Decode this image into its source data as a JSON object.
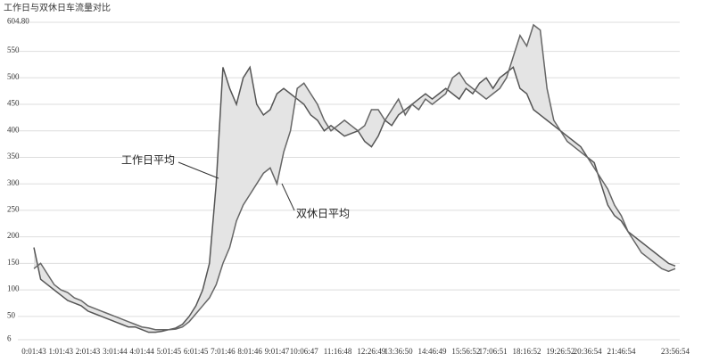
{
  "chart_data": {
    "type": "line",
    "title": "工作日与双休日车流量对比",
    "categories": [
      "0:01:43",
      null,
      null,
      null,
      "1:01:43",
      null,
      null,
      null,
      "2:01:43",
      null,
      null,
      null,
      "3:01:44",
      null,
      null,
      null,
      "4:01:44",
      null,
      null,
      null,
      "5:01:45",
      null,
      null,
      null,
      "6:01:45",
      null,
      null,
      null,
      "7:01:46",
      null,
      null,
      null,
      "8:01:46",
      null,
      null,
      null,
      "9:01:47",
      null,
      null,
      null,
      "10:06:47",
      null,
      null,
      null,
      null,
      "11:16:48",
      null,
      null,
      null,
      null,
      "12:26:49",
      null,
      null,
      null,
      "13:36:50",
      null,
      null,
      null,
      null,
      "14:46:49",
      null,
      null,
      null,
      null,
      "15:56:52",
      null,
      null,
      null,
      "17:06:51",
      null,
      null,
      null,
      null,
      "18:16:52",
      null,
      null,
      null,
      null,
      "19:26:52",
      null,
      null,
      null,
      "20:36:54",
      null,
      null,
      null,
      null,
      "21:46:54",
      null,
      null,
      null,
      null,
      null,
      null,
      null,
      "23:56:54"
    ],
    "series": [
      {
        "name": "工作日平均",
        "color": "#555555",
        "values": [
          180,
          120,
          110,
          100,
          90,
          80,
          75,
          70,
          60,
          55,
          50,
          45,
          40,
          35,
          30,
          30,
          25,
          20,
          20,
          22,
          25,
          28,
          35,
          50,
          70,
          100,
          150,
          300,
          520,
          480,
          450,
          500,
          520,
          450,
          430,
          440,
          470,
          480,
          470,
          460,
          450,
          430,
          420,
          400,
          410,
          400,
          390,
          395,
          400,
          380,
          370,
          390,
          420,
          410,
          430,
          440,
          450,
          460,
          470,
          460,
          470,
          480,
          470,
          460,
          480,
          470,
          490,
          500,
          480,
          500,
          510,
          520,
          480,
          470,
          440,
          430,
          420,
          410,
          400,
          390,
          380,
          370,
          350,
          340,
          300,
          260,
          240,
          230,
          210,
          200,
          190,
          180,
          170,
          160,
          150,
          145
        ]
      },
      {
        "name": "双休日平均",
        "color": "#666666",
        "values": [
          140,
          150,
          130,
          110,
          100,
          95,
          85,
          80,
          70,
          65,
          60,
          55,
          50,
          45,
          40,
          35,
          30,
          28,
          25,
          25,
          25,
          26,
          30,
          40,
          55,
          70,
          85,
          110,
          150,
          180,
          230,
          260,
          280,
          300,
          320,
          330,
          300,
          360,
          400,
          480,
          490,
          470,
          450,
          420,
          400,
          410,
          420,
          410,
          400,
          410,
          440,
          440,
          420,
          440,
          460,
          430,
          450,
          440,
          460,
          450,
          460,
          470,
          500,
          510,
          490,
          480,
          470,
          460,
          470,
          480,
          500,
          540,
          580,
          560,
          600,
          590,
          480,
          420,
          400,
          380,
          370,
          360,
          350,
          330,
          310,
          290,
          260,
          240,
          210,
          190,
          170,
          160,
          150,
          140,
          135,
          140
        ]
      }
    ],
    "ylim": [
      6,
      604.8
    ],
    "yticks": [
      6,
      50,
      100,
      150,
      200,
      250,
      300,
      350,
      400,
      450,
      500,
      550,
      {
        "value": 604.8,
        "label": "604.80"
      }
    ],
    "grid": true,
    "fill_between": "#e4e4e4"
  }
}
